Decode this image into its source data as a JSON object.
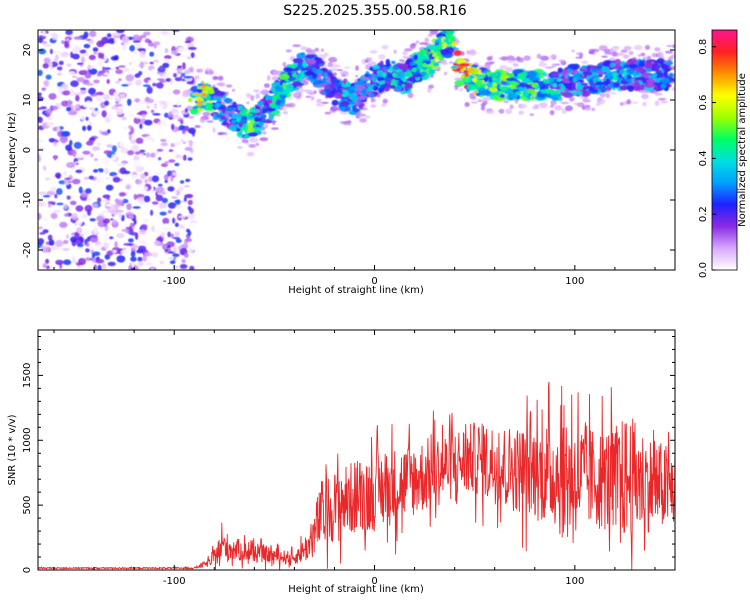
{
  "figure_title": "S225.2025.355.00.58.R16",
  "colors": {
    "snr_line": "#e8282a",
    "spectrogram_noise": "#7a2ff0",
    "colorbar_stops": [
      "#ffffff",
      "#d8a8ff",
      "#8a2be2",
      "#2020ff",
      "#00a0ff",
      "#00e0e0",
      "#00ff60",
      "#a0ff00",
      "#ffff00",
      "#ff9000",
      "#ff2020",
      "#ff1493"
    ]
  },
  "chart_data": [
    {
      "type": "heatmap",
      "name": "spectrogram",
      "xlabel": "Height of straight line (km)",
      "ylabel": "Frequency (Hz)",
      "xlim": [
        -168,
        150
      ],
      "ylim": [
        -24,
        24
      ],
      "xticks": [
        -100,
        0,
        100
      ],
      "xtick_labels": [
        "-100",
        "0",
        "100"
      ],
      "yticks": [
        -20,
        -10,
        0,
        10,
        20
      ],
      "ytick_labels": [
        "-20",
        "-10",
        "0",
        "10",
        "20"
      ],
      "colorbar": {
        "label": "Normalized spectral amplitude",
        "range": [
          0.0,
          0.86
        ],
        "ticks": [
          0.0,
          0.2,
          0.4,
          0.6,
          0.8
        ],
        "tick_labels": [
          "0.0",
          "0.2",
          "0.4",
          "0.6",
          "0.8"
        ]
      },
      "ridge": {
        "x": [
          -92,
          -85,
          -78,
          -72,
          -68,
          -62,
          -56,
          -50,
          -45,
          -40,
          -35,
          -30,
          -25,
          -20,
          -15,
          -10,
          -5,
          0,
          5,
          10,
          15,
          20,
          25,
          30,
          35,
          38,
          42,
          46,
          50,
          60,
          70,
          80,
          90,
          100,
          110,
          120,
          130,
          140,
          148
        ],
        "y": [
          10,
          11,
          9,
          7,
          6,
          5,
          7,
          10,
          13,
          15,
          17,
          16,
          14,
          12,
          11,
          10,
          12,
          14,
          15,
          15,
          14,
          16,
          17,
          19,
          21,
          22,
          16,
          15,
          14,
          13,
          13,
          13,
          13,
          14,
          14,
          15,
          15,
          15,
          15
        ],
        "amplitude": [
          0.55,
          0.7,
          0.35,
          0.3,
          0.4,
          0.55,
          0.3,
          0.45,
          0.5,
          0.45,
          0.4,
          0.3,
          0.3,
          0.25,
          0.4,
          0.35,
          0.3,
          0.35,
          0.4,
          0.45,
          0.4,
          0.45,
          0.5,
          0.55,
          0.6,
          0.5,
          0.82,
          0.75,
          0.6,
          0.55,
          0.5,
          0.5,
          0.4,
          0.35,
          0.35,
          0.4,
          0.35,
          0.35,
          0.3
        ]
      }
    },
    {
      "type": "line",
      "name": "snr",
      "xlabel": "Height of straight line (km)",
      "ylabel": "SNR (10 * v/v)",
      "xlim": [
        -168,
        150
      ],
      "ylim": [
        0,
        1850
      ],
      "xticks": [
        -100,
        0,
        100
      ],
      "xtick_labels": [
        "-100",
        "0",
        "100"
      ],
      "yticks": [
        0,
        500,
        1000,
        1500
      ],
      "ytick_labels": [
        "0",
        "500",
        "1000",
        "1500"
      ],
      "envelope": {
        "x": [
          -168,
          -90,
          -82,
          -76,
          -70,
          -60,
          -50,
          -40,
          -32,
          -27,
          -20,
          -10,
          0,
          10,
          20,
          30,
          40,
          50,
          60,
          70,
          80,
          90,
          96,
          100,
          110,
          120,
          127,
          135,
          140,
          150
        ],
        "mean": [
          15,
          15,
          60,
          180,
          160,
          130,
          110,
          90,
          200,
          420,
          500,
          560,
          600,
          650,
          700,
          760,
          820,
          860,
          820,
          780,
          760,
          740,
          740,
          720,
          700,
          700,
          700,
          680,
          650,
          620
        ],
        "spread": [
          8,
          8,
          60,
          220,
          150,
          120,
          100,
          80,
          220,
          450,
          450,
          480,
          500,
          500,
          480,
          470,
          460,
          470,
          520,
          560,
          620,
          700,
          950,
          750,
          650,
          700,
          850,
          650,
          600,
          550
        ]
      }
    }
  ]
}
